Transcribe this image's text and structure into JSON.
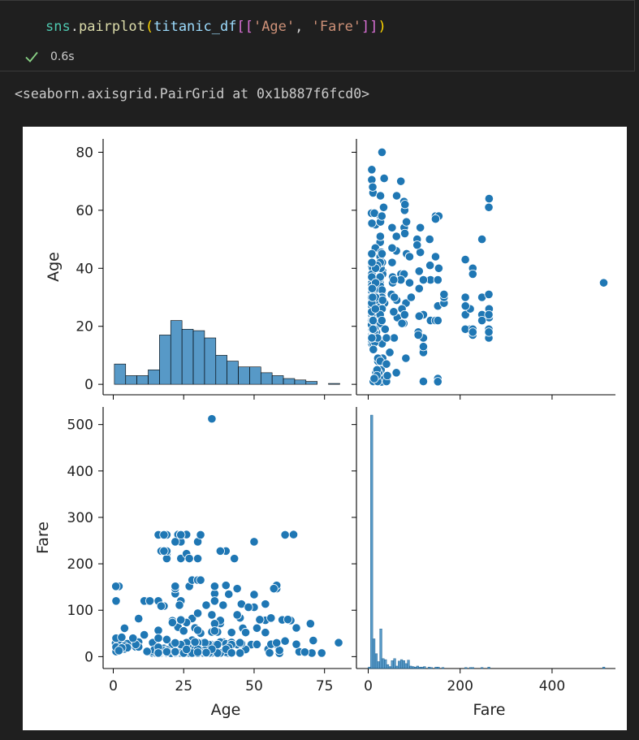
{
  "cell": {
    "code": {
      "module": "sns",
      "dot": ".",
      "func": "pairplot",
      "open_paren": "(",
      "var": "titanic_df",
      "open_brackets": "[[",
      "col1": "'Age'",
      "sep": ", ",
      "col2": "'Fare'",
      "close_brackets": "]]",
      "close_paren": ")"
    },
    "status": {
      "icon": "check-icon",
      "time": "0.6s"
    }
  },
  "output": {
    "text": "<seaborn.axisgrid.PairGrid at 0x1b887f6fcd0>"
  },
  "colors": {
    "background": "#1f1f1f",
    "points": "#1f77b4",
    "check": "#89d185"
  },
  "chart_data": {
    "type": "scatter",
    "grid": false,
    "variables": [
      "Age",
      "Fare"
    ],
    "age_hist": {
      "bins": [
        [
          0.4,
          4.4,
          7
        ],
        [
          4.4,
          8.4,
          3
        ],
        [
          8.4,
          12.4,
          3
        ],
        [
          12.4,
          16.4,
          5
        ],
        [
          16.4,
          20.4,
          17
        ],
        [
          20.4,
          24.4,
          22
        ],
        [
          24.4,
          28.4,
          19
        ],
        [
          28.4,
          32.4,
          18.5
        ],
        [
          32.4,
          36.4,
          16
        ],
        [
          36.4,
          40.4,
          10
        ],
        [
          40.4,
          44.4,
          8
        ],
        [
          44.4,
          48.4,
          6
        ],
        [
          48.4,
          52.4,
          6
        ],
        [
          52.4,
          56.4,
          4
        ],
        [
          56.4,
          60.4,
          3
        ],
        [
          60.4,
          64.4,
          2
        ],
        [
          64.4,
          68.4,
          1.5
        ],
        [
          68.4,
          72.4,
          1
        ],
        [
          72.4,
          76.4,
          0
        ],
        [
          76.4,
          80.4,
          0.3
        ]
      ]
    },
    "fare_hist": {
      "bins": [
        [
          0,
          5,
          3
        ],
        [
          5,
          10,
          512
        ],
        [
          10,
          15,
          60
        ],
        [
          15,
          20,
          30
        ],
        [
          20,
          25,
          14
        ],
        [
          25,
          30,
          80
        ],
        [
          30,
          35,
          20
        ],
        [
          35,
          40,
          18
        ],
        [
          40,
          45,
          8
        ],
        [
          45,
          50,
          4
        ],
        [
          50,
          55,
          16
        ],
        [
          55,
          60,
          20
        ],
        [
          60,
          65,
          5
        ],
        [
          65,
          70,
          15
        ],
        [
          70,
          75,
          18
        ],
        [
          75,
          80,
          16
        ],
        [
          80,
          85,
          10
        ],
        [
          85,
          90,
          17
        ],
        [
          90,
          95,
          5
        ],
        [
          95,
          100,
          4
        ],
        [
          100,
          105,
          3
        ],
        [
          105,
          110,
          5
        ],
        [
          110,
          115,
          3
        ],
        [
          115,
          120,
          3
        ],
        [
          120,
          125,
          4
        ],
        [
          130,
          135,
          3
        ],
        [
          135,
          140,
          2
        ],
        [
          145,
          150,
          3
        ],
        [
          150,
          155,
          3
        ],
        [
          160,
          165,
          2
        ],
        [
          210,
          215,
          2
        ],
        [
          220,
          225,
          2
        ],
        [
          225,
          230,
          2
        ],
        [
          245,
          250,
          2
        ],
        [
          260,
          265,
          3
        ],
        [
          510,
          515,
          3
        ]
      ]
    },
    "age_ticks": [
      0,
      20,
      40,
      60,
      80
    ],
    "fare_ticks": [
      0,
      100,
      200,
      300,
      400,
      500
    ],
    "age_xticks": [
      0,
      25,
      50,
      75
    ],
    "fare_xticks": [
      0,
      200,
      400
    ],
    "axis_labels": {
      "age": "Age",
      "fare": "Fare"
    },
    "xlim_age": [
      -3.6,
      84.6
    ],
    "xlim_fare": [
      -25.6,
      537.9
    ],
    "ylim_age": [
      -3.6,
      84.6
    ],
    "ylim_fare": [
      -25.6,
      537.9
    ],
    "scatter_age_fare": [
      [
        22,
        7.25
      ],
      [
        38,
        71.3
      ],
      [
        26,
        7.9
      ],
      [
        35,
        53.1
      ],
      [
        35,
        8.05
      ],
      [
        54,
        51.9
      ],
      [
        2,
        21.1
      ],
      [
        27,
        11.1
      ],
      [
        14,
        30.1
      ],
      [
        4,
        16.7
      ],
      [
        58,
        26.6
      ],
      [
        20,
        8.05
      ],
      [
        39,
        31.3
      ],
      [
        14,
        7.85
      ],
      [
        55,
        16
      ],
      [
        2,
        29.1
      ],
      [
        31,
        18
      ],
      [
        35,
        26
      ],
      [
        34,
        13
      ],
      [
        15,
        8.03
      ],
      [
        28,
        35.5
      ],
      [
        8,
        21.1
      ],
      [
        38,
        31.4
      ],
      [
        19,
        263
      ],
      [
        40,
        27.7
      ],
      [
        66,
        10.5
      ],
      [
        28,
        82.2
      ],
      [
        42,
        52
      ],
      [
        21,
        8.05
      ],
      [
        18,
        18
      ],
      [
        14,
        11.2
      ],
      [
        40,
        9.5
      ],
      [
        27,
        21
      ],
      [
        3,
        41.6
      ],
      [
        19,
        7.9
      ],
      [
        18,
        17.8
      ],
      [
        7,
        39.7
      ],
      [
        21,
        76.7
      ],
      [
        49,
        26
      ],
      [
        29,
        61.9
      ],
      [
        65,
        61.9
      ],
      [
        21,
        73.5
      ],
      [
        28.5,
        7.2
      ],
      [
        5,
        27.8
      ],
      [
        11,
        46.9
      ],
      [
        22,
        7.2
      ],
      [
        45,
        83.5
      ],
      [
        4,
        61.2
      ],
      [
        29,
        21
      ],
      [
        19,
        7.8
      ],
      [
        17,
        12.5
      ],
      [
        26,
        8.05
      ],
      [
        32,
        10.5
      ],
      [
        16,
        56.5
      ],
      [
        21,
        7.75
      ],
      [
        26,
        73.5
      ],
      [
        32,
        30.5
      ],
      [
        25,
        7.65
      ],
      [
        0.83,
        29
      ],
      [
        30,
        12.5
      ],
      [
        22,
        7.2
      ],
      [
        29,
        7.9
      ],
      [
        28,
        10.5
      ],
      [
        17,
        8.05
      ],
      [
        33,
        15.9
      ],
      [
        16,
        39.7
      ],
      [
        23,
        263
      ],
      [
        24,
        247.5
      ],
      [
        29,
        7.9
      ],
      [
        20,
        7.85
      ],
      [
        46,
        61.2
      ],
      [
        26,
        20.6
      ],
      [
        59,
        7.25
      ],
      [
        71,
        34.7
      ],
      [
        23,
        63.4
      ],
      [
        34,
        23
      ],
      [
        34,
        26
      ],
      [
        28,
        7.9
      ],
      [
        21,
        77.3
      ],
      [
        33,
        8.65
      ],
      [
        37,
        7.9
      ],
      [
        28,
        7.8
      ],
      [
        21,
        26
      ],
      [
        38,
        77.9
      ],
      [
        47,
        52
      ],
      [
        14.5,
        14.5
      ],
      [
        22,
        7.8
      ],
      [
        20,
        9.2
      ],
      [
        17,
        10.5
      ],
      [
        21,
        7.75
      ],
      [
        70.5,
        7.75
      ],
      [
        29,
        14.5
      ],
      [
        24,
        247.5
      ],
      [
        2,
        31.3
      ],
      [
        21,
        73.5
      ],
      [
        32.5,
        30.1
      ],
      [
        32.5,
        13
      ],
      [
        54,
        77.3
      ],
      [
        12,
        11.2
      ],
      [
        24,
        7.1
      ],
      [
        45,
        26.3
      ],
      [
        33,
        8.05
      ],
      [
        20,
        9.8
      ],
      [
        47,
        15.5
      ],
      [
        29,
        26
      ],
      [
        25,
        7.5
      ],
      [
        23,
        7.8
      ],
      [
        19,
        263
      ],
      [
        37,
        53.1
      ],
      [
        16,
        9.2
      ],
      [
        24,
        79.2
      ],
      [
        22,
        7.25
      ],
      [
        24,
        15.8
      ],
      [
        19,
        221.8
      ],
      [
        18,
        108.9
      ],
      [
        19,
        211.3
      ],
      [
        27,
        151.5
      ],
      [
        9,
        31.4
      ],
      [
        36.5,
        26
      ],
      [
        42,
        30.5
      ],
      [
        51,
        26.6
      ],
      [
        22,
        247.5
      ],
      [
        55.5,
        8.05
      ],
      [
        40.5,
        7.75
      ],
      [
        51,
        26.3
      ],
      [
        16,
        8.7
      ],
      [
        30,
        7.9
      ],
      [
        44,
        90
      ],
      [
        40,
        9.5
      ],
      [
        26,
        7.8
      ],
      [
        17,
        10.5
      ],
      [
        1,
        11.1
      ],
      [
        9,
        21
      ],
      [
        45,
        7.75
      ],
      [
        28,
        26.6
      ],
      [
        61,
        33.5
      ],
      [
        4,
        16.7
      ],
      [
        1,
        39.7
      ],
      [
        21,
        7.8
      ],
      [
        56,
        26.6
      ],
      [
        18,
        11.5
      ],
      [
        50,
        247.5
      ],
      [
        30,
        8.05
      ],
      [
        36,
        120
      ],
      [
        9,
        81.9
      ],
      [
        1,
        20.6
      ],
      [
        4,
        23
      ],
      [
        45,
        26.6
      ],
      [
        40,
        153.5
      ],
      [
        36,
        71
      ],
      [
        32,
        7.9
      ],
      [
        19,
        14.5
      ],
      [
        3,
        41.6
      ],
      [
        44,
        26
      ],
      [
        58,
        146.5
      ],
      [
        42,
        7.65
      ],
      [
        24,
        7.85
      ],
      [
        28,
        8.05
      ],
      [
        34,
        7.9
      ],
      [
        45.5,
        28.5
      ],
      [
        18,
        13
      ],
      [
        2,
        151.5
      ],
      [
        32,
        7.75
      ],
      [
        26,
        30.1
      ],
      [
        16,
        7.75
      ],
      [
        40,
        153.5
      ],
      [
        24,
        7.75
      ],
      [
        35,
        512.3
      ],
      [
        22,
        135.6
      ],
      [
        30,
        247.5
      ],
      [
        31,
        50.5
      ],
      [
        27,
        8.05
      ],
      [
        42,
        26
      ],
      [
        32,
        7.9
      ],
      [
        30,
        30
      ],
      [
        16,
        7.75
      ],
      [
        27,
        7.8
      ],
      [
        51,
        61.4
      ],
      [
        38,
        7.9
      ],
      [
        22,
        7.25
      ],
      [
        19,
        9.8
      ],
      [
        20.5,
        7.25
      ],
      [
        18,
        108.9
      ],
      [
        35,
        90
      ],
      [
        29,
        8.05
      ],
      [
        59,
        13.5
      ],
      [
        5,
        19.3
      ],
      [
        24,
        120
      ],
      [
        44,
        90
      ],
      [
        8,
        26.2
      ],
      [
        19,
        10.5
      ],
      [
        33,
        7.9
      ],
      [
        29,
        30
      ],
      [
        22,
        9.35
      ],
      [
        30,
        7.23
      ],
      [
        44,
        90
      ],
      [
        25,
        7.05
      ],
      [
        24,
        26
      ],
      [
        37,
        7.75
      ],
      [
        54,
        78.3
      ],
      [
        29,
        15.2
      ],
      [
        62,
        80
      ],
      [
        30,
        16.1
      ],
      [
        41,
        19.5
      ],
      [
        29,
        31.4
      ],
      [
        30,
        56.9
      ],
      [
        35,
        53.1
      ],
      [
        50,
        133.7
      ],
      [
        3,
        18.8
      ],
      [
        52,
        79.65
      ],
      [
        40,
        16.1
      ],
      [
        36,
        55.4
      ],
      [
        16,
        20.3
      ],
      [
        25,
        55.4
      ],
      [
        58,
        153.5
      ],
      [
        35,
        512.3
      ],
      [
        25,
        7.65
      ],
      [
        41,
        134.5
      ],
      [
        37,
        26
      ],
      [
        63,
        77.9
      ],
      [
        45,
        30
      ],
      [
        7,
        39.7
      ],
      [
        35,
        16.1
      ],
      [
        65,
        26.6
      ],
      [
        28,
        7.75
      ],
      [
        16,
        7.85
      ],
      [
        19,
        36.8
      ],
      [
        33,
        8.66
      ],
      [
        30,
        9.5
      ],
      [
        22,
        10.5
      ],
      [
        42,
        8.05
      ],
      [
        22,
        29.7
      ],
      [
        26,
        15.55
      ],
      [
        19,
        262.4
      ],
      [
        36,
        135.6
      ],
      [
        24,
        263
      ],
      [
        24,
        263
      ],
      [
        23.5,
        110.9
      ],
      [
        2,
        13
      ],
      [
        50,
        106.4
      ],
      [
        19,
        227.5
      ],
      [
        0.92,
        151.5
      ],
      [
        17,
        227.5
      ],
      [
        30,
        211.3
      ],
      [
        30,
        211.3
      ],
      [
        24,
        211.5
      ],
      [
        18,
        227.5
      ],
      [
        26,
        221.8
      ],
      [
        28,
        164.9
      ],
      [
        43,
        211.3
      ],
      [
        26,
        263
      ],
      [
        24,
        262.4
      ],
      [
        54,
        113.3
      ],
      [
        31,
        262.4
      ],
      [
        40,
        227.5
      ],
      [
        22,
        135.6
      ],
      [
        27,
        211.5
      ],
      [
        30,
        164.9
      ],
      [
        22,
        146.5
      ],
      [
        36,
        120
      ],
      [
        61,
        262.4
      ],
      [
        36,
        151.6
      ],
      [
        31,
        164.9
      ],
      [
        16,
        120
      ],
      [
        45.5,
        113.3
      ],
      [
        38,
        227.5
      ],
      [
        16,
        262.4
      ],
      [
        33,
        110.9
      ],
      [
        44,
        146.5
      ],
      [
        57,
        146.5
      ],
      [
        64,
        263
      ],
      [
        22,
        151.6
      ],
      [
        18,
        262.4
      ],
      [
        60,
        79.2
      ],
      [
        80,
        30
      ],
      [
        17,
        108.9
      ],
      [
        1,
        120
      ],
      [
        74,
        7.78
      ],
      [
        70,
        71
      ],
      [
        47,
        52
      ],
      [
        12,
        120
      ],
      [
        11,
        120
      ],
      [
        39,
        110.9
      ],
      [
        30,
        93.5
      ],
      [
        56,
        83.2
      ],
      [
        48,
        106.4
      ],
      [
        13,
        120
      ],
      [
        62,
        80
      ],
      [
        58,
        29.7
      ],
      [
        68,
        9.8
      ]
    ]
  }
}
